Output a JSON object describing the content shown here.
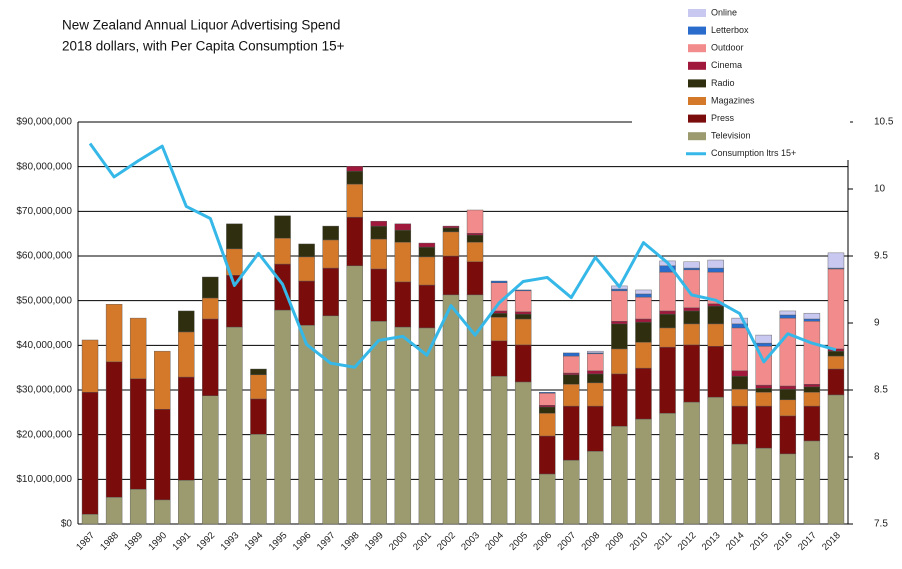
{
  "chart_data": {
    "type": "bar",
    "title": "New Zealand Annual Liquor Advertising Spend",
    "subtitle": "2018 dollars, with Per Capita Consumption 15+",
    "stacked": true,
    "grid": true,
    "legend": "top-right",
    "categories": [
      "1987",
      "1988",
      "1989",
      "1990",
      "1991",
      "1992",
      "1993",
      "1994",
      "1995",
      "1996",
      "1997",
      "1998",
      "1999",
      "2000",
      "2001",
      "2002",
      "2003",
      "2004",
      "2005",
      "2006",
      "2007",
      "2008",
      "2009",
      "2010",
      "2011",
      "2012",
      "2013",
      "2014",
      "2015",
      "2016",
      "2017",
      "2018"
    ],
    "ylim": [
      0,
      90000000
    ],
    "yticks": [
      {
        "value": 0,
        "label": "$0"
      },
      {
        "value": 10000000,
        "label": "$10,000,000"
      },
      {
        "value": 20000000,
        "label": "$20,000,000"
      },
      {
        "value": 30000000,
        "label": "$30,000,000"
      },
      {
        "value": 40000000,
        "label": "$40,000,000"
      },
      {
        "value": 50000000,
        "label": "$50,000,000"
      },
      {
        "value": 60000000,
        "label": "$60,000,000"
      },
      {
        "value": 70000000,
        "label": "$70,000,000"
      },
      {
        "value": 80000000,
        "label": "$80,000,000"
      },
      {
        "value": 90000000,
        "label": "$90,000,000"
      }
    ],
    "y2lim": [
      7.5,
      10.5
    ],
    "y2ticks": [
      7.5,
      8,
      8.5,
      9,
      9.5,
      10,
      10.5
    ],
    "series": [
      {
        "name": "Television",
        "color": "#9c9b70",
        "values": [
          2200000,
          6000000,
          7800000,
          5400000,
          9800000,
          28700000,
          44100000,
          20100000,
          47900000,
          44500000,
          46600000,
          57800000,
          45400000,
          44100000,
          43900000,
          51300000,
          51300000,
          33100000,
          31800000,
          11200000,
          14300000,
          16300000,
          21900000,
          23500000,
          24800000,
          27300000,
          28400000,
          17900000,
          17000000,
          15700000,
          18600000,
          28900000
        ]
      },
      {
        "name": "Press",
        "color": "#7a0c0c",
        "values": [
          27300000,
          30300000,
          24700000,
          20300000,
          23100000,
          17200000,
          11600000,
          7900000,
          10300000,
          9900000,
          10700000,
          10900000,
          11700000,
          10100000,
          9600000,
          8700000,
          7400000,
          7900000,
          8300000,
          8500000,
          12100000,
          10100000,
          11700000,
          11400000,
          14800000,
          12800000,
          11400000,
          8500000,
          9400000,
          8500000,
          7800000,
          5800000
        ]
      },
      {
        "name": "Magazines",
        "color": "#d4782a",
        "values": [
          11700000,
          12900000,
          13600000,
          13000000,
          10100000,
          4700000,
          5900000,
          5400000,
          5800000,
          5400000,
          6300000,
          7400000,
          6700000,
          8900000,
          6300000,
          5400000,
          4400000,
          5300000,
          5800000,
          5100000,
          4900000,
          5200000,
          5600000,
          5800000,
          4300000,
          4700000,
          5000000,
          3800000,
          3100000,
          3600000,
          3100000,
          2900000
        ]
      },
      {
        "name": "Radio",
        "color": "#2f2f10",
        "values": [
          0,
          0,
          0,
          0,
          4700000,
          4700000,
          5600000,
          1300000,
          5000000,
          2900000,
          3100000,
          2900000,
          2900000,
          2700000,
          2200000,
          900000,
          1600000,
          900000,
          1100000,
          1400000,
          2100000,
          2000000,
          5600000,
          4500000,
          3100000,
          2900000,
          4000000,
          2900000,
          900000,
          2400000,
          1200000,
          1100000
        ]
      },
      {
        "name": "Cinema",
        "color": "#a0183c",
        "values": [
          0,
          0,
          0,
          0,
          0,
          0,
          0,
          0,
          0,
          0,
          0,
          1100000,
          1100000,
          1400000,
          900000,
          400000,
          400000,
          500000,
          500000,
          400000,
          400000,
          700000,
          600000,
          700000,
          700000,
          700000,
          500000,
          1200000,
          700000,
          700000,
          600000,
          500000
        ]
      },
      {
        "name": "Outdoor",
        "color": "#f28c8c",
        "values": [
          0,
          0,
          0,
          0,
          0,
          0,
          0,
          0,
          0,
          0,
          0,
          0,
          0,
          0,
          0,
          0,
          5200000,
          6300000,
          4700000,
          2700000,
          3800000,
          3800000,
          6800000,
          4900000,
          8700000,
          8500000,
          7100000,
          9600000,
          8700000,
          15200000,
          14100000,
          17900000
        ]
      },
      {
        "name": "Letterbox",
        "color": "#2a6ccc",
        "values": [
          0,
          0,
          0,
          0,
          0,
          0,
          0,
          0,
          0,
          0,
          0,
          0,
          0,
          0,
          0,
          0,
          0,
          400000,
          200000,
          200000,
          700000,
          200000,
          400000,
          700000,
          1400000,
          400000,
          900000,
          900000,
          700000,
          700000,
          500000,
          200000
        ]
      },
      {
        "name": "Online",
        "color": "#c8c8f0",
        "values": [
          0,
          0,
          0,
          0,
          0,
          0,
          0,
          0,
          0,
          0,
          0,
          0,
          0,
          0,
          0,
          0,
          0,
          0,
          0,
          0,
          0,
          400000,
          700000,
          900000,
          1100000,
          1400000,
          1800000,
          1300000,
          1800000,
          900000,
          1300000,
          3400000
        ]
      },
      {
        "name": "Consumption ltrs 15+",
        "color": "#35b8e8",
        "type": "line",
        "axis": "y2",
        "values": [
          10.34,
          10.09,
          10.21,
          10.32,
          9.87,
          9.78,
          9.28,
          9.52,
          9.29,
          8.84,
          8.7,
          8.67,
          8.87,
          8.9,
          8.76,
          9.13,
          8.91,
          9.15,
          9.31,
          9.34,
          9.19,
          9.49,
          9.27,
          9.6,
          9.45,
          9.21,
          9.17,
          9.07,
          8.71,
          8.92,
          8.85,
          8.8
        ]
      }
    ]
  }
}
